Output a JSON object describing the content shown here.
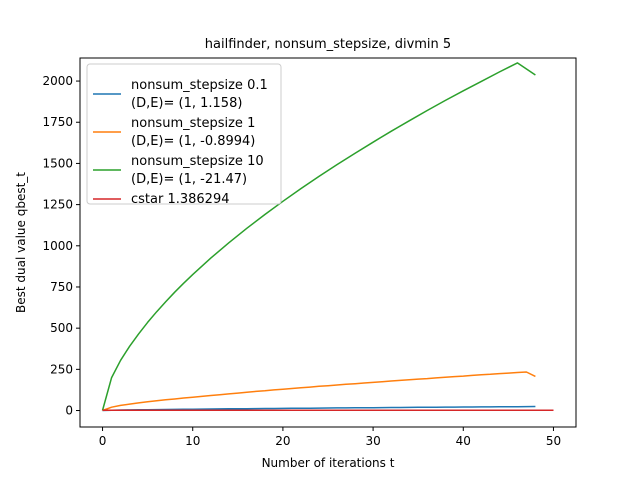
{
  "chart_data": {
    "type": "line",
    "title": "hailfinder, nonsum_stepsize, divmin 5",
    "xlabel": "Number of iterations t",
    "ylabel": "Best dual value qbest_t",
    "xlim": [
      -2.5,
      52.5
    ],
    "ylim": [
      -100,
      2140
    ],
    "xticks": [
      0,
      10,
      20,
      30,
      40,
      50
    ],
    "yticks": [
      0,
      250,
      500,
      750,
      1000,
      1250,
      1500,
      1750,
      2000
    ],
    "grid": false,
    "legend_position": "top-left",
    "series": [
      {
        "name": "nonsum_stepsize 0.1",
        "legend_lines": [
          "nonsum_stepsize 0.1",
          "(D,E)= (1, 1.158)"
        ],
        "color": "#1f77b4",
        "x": [
          0,
          1,
          2,
          3,
          4,
          5,
          6,
          7,
          8,
          9,
          10,
          11,
          12,
          13,
          14,
          15,
          16,
          17,
          18,
          19,
          20,
          21,
          22,
          23,
          24,
          25,
          26,
          27,
          28,
          29,
          30,
          31,
          32,
          33,
          34,
          35,
          36,
          37,
          38,
          39,
          40,
          41,
          42,
          43,
          44,
          45,
          46,
          47,
          48
        ],
        "y": [
          0,
          2.1,
          3.1,
          3.9,
          4.6,
          5.3,
          5.9,
          6.5,
          7.1,
          7.6,
          8.2,
          8.7,
          9.2,
          9.7,
          10.2,
          10.7,
          11.2,
          11.7,
          12.1,
          12.6,
          13.1,
          13.5,
          14.0,
          14.4,
          14.8,
          15.3,
          15.7,
          16.1,
          16.5,
          16.9,
          17.3,
          17.7,
          18.1,
          18.5,
          18.9,
          19.3,
          19.7,
          20.1,
          20.5,
          20.8,
          21.2,
          21.6,
          22.0,
          22.3,
          22.7,
          23.1,
          23.4,
          23.8,
          24.2
        ]
      },
      {
        "name": "nonsum_stepsize 1",
        "legend_lines": [
          "nonsum_stepsize 1",
          "(D,E)= (1, -0.8994)"
        ],
        "color": "#ff7f0e",
        "x": [
          0,
          1,
          2,
          3,
          4,
          5,
          6,
          7,
          8,
          9,
          10,
          11,
          12,
          13,
          14,
          15,
          16,
          17,
          18,
          19,
          20,
          21,
          22,
          23,
          24,
          25,
          26,
          27,
          28,
          29,
          30,
          31,
          32,
          33,
          34,
          35,
          36,
          37,
          38,
          39,
          40,
          41,
          42,
          43,
          44,
          45,
          46,
          47,
          48
        ],
        "y": [
          0,
          20,
          31,
          39,
          46,
          53,
          59,
          65,
          70,
          76,
          81,
          86,
          91,
          96,
          101,
          106,
          111,
          116,
          120,
          125,
          129,
          134,
          138,
          142,
          147,
          151,
          155,
          159,
          163,
          167,
          171,
          175,
          179,
          183,
          187,
          191,
          194,
          198,
          202,
          206,
          209,
          213,
          217,
          220,
          224,
          227,
          231,
          234,
          207
        ]
      },
      {
        "name": "nonsum_stepsize 10",
        "legend_lines": [
          "nonsum_stepsize 10",
          "(D,E)= (1, -21.47)"
        ],
        "color": "#2ca02c",
        "x": [
          0,
          1,
          2,
          3,
          4,
          5,
          6,
          7,
          8,
          9,
          10,
          12,
          14,
          16,
          18,
          20,
          22,
          24,
          26,
          28,
          30,
          32,
          34,
          36,
          38,
          40,
          42,
          44,
          46,
          48
        ],
        "y": [
          0,
          200,
          305,
          390,
          465,
          535,
          600,
          660,
          718,
          773,
          825,
          925,
          1018,
          1106,
          1190,
          1270,
          1347,
          1421,
          1493,
          1562,
          1629,
          1695,
          1759,
          1821,
          1882,
          1941,
          1998,
          2055,
          2110,
          2037
        ]
      },
      {
        "name": "cstar 1.386294",
        "legend_lines": [
          "cstar 1.386294"
        ],
        "color": "#d62728",
        "x": [
          0,
          50
        ],
        "y": [
          1.386294,
          1.386294
        ]
      }
    ]
  }
}
